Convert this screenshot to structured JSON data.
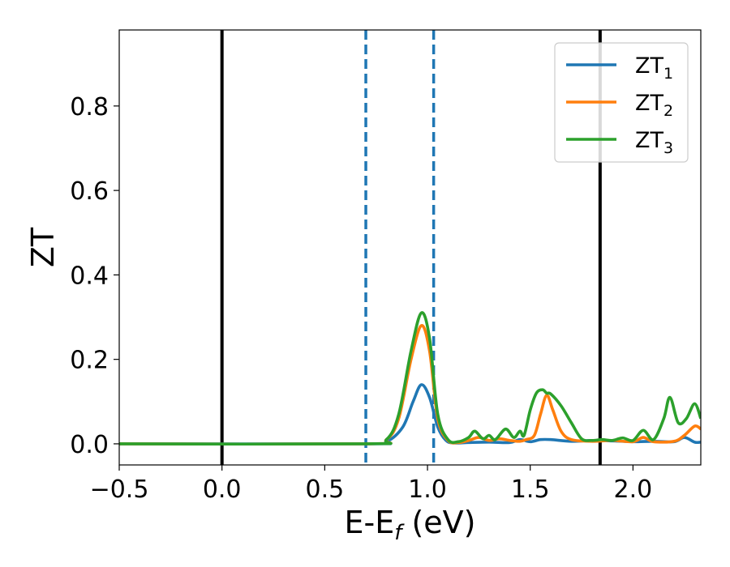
{
  "chart_data": {
    "type": "line",
    "xlabel_main": "E-E",
    "xlabel_sub": "f",
    "xlabel_unit": " (eV)",
    "ylabel": "ZT",
    "xlim": [
      -0.5,
      2.33
    ],
    "ylim": [
      -0.05,
      0.98
    ],
    "grid": false,
    "legend_placement": "top-right",
    "x_ticks": [
      -0.5,
      0.0,
      0.5,
      1.0,
      1.5,
      2.0
    ],
    "x_tick_labels": [
      "−0.5",
      "0.0",
      "0.5",
      "1.0",
      "1.5",
      "2.0"
    ],
    "y_ticks": [
      0.0,
      0.2,
      0.4,
      0.6,
      0.8
    ],
    "y_tick_labels": [
      "0.0",
      "0.2",
      "0.4",
      "0.6",
      "0.8"
    ],
    "vertical_lines": [
      {
        "x": 0.0,
        "style": "solid",
        "color": "#000000"
      },
      {
        "x": 1.84,
        "style": "solid",
        "color": "#000000"
      },
      {
        "x": 0.7,
        "style": "dashed",
        "color": "#1f77b4"
      },
      {
        "x": 1.03,
        "style": "dashed",
        "color": "#1f77b4"
      }
    ],
    "series": [
      {
        "name_main": "ZT",
        "name_sub": "1",
        "color": "#1f77b4",
        "x": [
          -0.5,
          0.7,
          0.8,
          0.88,
          0.93,
          0.97,
          1.01,
          1.05,
          1.09,
          1.13,
          1.2,
          1.3,
          1.4,
          1.45,
          1.5,
          1.55,
          1.6,
          1.7,
          1.8,
          1.9,
          2.0,
          2.1,
          2.2,
          2.25,
          2.3,
          2.33
        ],
        "y": [
          0.0,
          0.0,
          0.005,
          0.04,
          0.1,
          0.14,
          0.11,
          0.04,
          0.008,
          0.002,
          0.003,
          0.004,
          0.003,
          0.01,
          0.005,
          0.01,
          0.01,
          0.006,
          0.008,
          0.007,
          0.005,
          0.006,
          0.005,
          0.015,
          0.004,
          0.004
        ]
      },
      {
        "name_main": "ZT",
        "name_sub": "2",
        "color": "#ff7f0e",
        "x": [
          -0.5,
          0.7,
          0.8,
          0.86,
          0.92,
          0.97,
          1.01,
          1.05,
          1.1,
          1.15,
          1.2,
          1.25,
          1.3,
          1.35,
          1.4,
          1.45,
          1.48,
          1.52,
          1.55,
          1.58,
          1.61,
          1.65,
          1.7,
          1.8,
          1.9,
          2.0,
          2.05,
          2.1,
          2.2,
          2.25,
          2.3,
          2.33
        ],
        "y": [
          0.0,
          0.0,
          0.01,
          0.06,
          0.2,
          0.28,
          0.22,
          0.06,
          0.008,
          0.003,
          0.008,
          0.015,
          0.008,
          0.012,
          0.008,
          0.006,
          0.01,
          0.02,
          0.07,
          0.115,
          0.08,
          0.03,
          0.01,
          0.006,
          0.008,
          0.005,
          0.015,
          0.005,
          0.006,
          0.02,
          0.042,
          0.035
        ]
      },
      {
        "name_main": "ZT",
        "name_sub": "3",
        "color": "#2ca02c",
        "x": [
          -0.5,
          0.7,
          0.8,
          0.86,
          0.92,
          0.97,
          1.01,
          1.05,
          1.1,
          1.15,
          1.2,
          1.23,
          1.27,
          1.3,
          1.33,
          1.38,
          1.42,
          1.45,
          1.47,
          1.5,
          1.53,
          1.56,
          1.58,
          1.6,
          1.65,
          1.7,
          1.75,
          1.8,
          1.85,
          1.9,
          1.95,
          2.0,
          2.05,
          2.1,
          2.15,
          2.18,
          2.22,
          2.26,
          2.3,
          2.33
        ],
        "y": [
          0.0,
          0.0,
          0.01,
          0.07,
          0.22,
          0.31,
          0.25,
          0.07,
          0.01,
          0.005,
          0.015,
          0.03,
          0.012,
          0.02,
          0.01,
          0.035,
          0.015,
          0.03,
          0.02,
          0.08,
          0.12,
          0.128,
          0.12,
          0.118,
          0.09,
          0.05,
          0.012,
          0.008,
          0.01,
          0.008,
          0.014,
          0.008,
          0.032,
          0.01,
          0.06,
          0.11,
          0.05,
          0.06,
          0.095,
          0.06
        ]
      }
    ]
  }
}
